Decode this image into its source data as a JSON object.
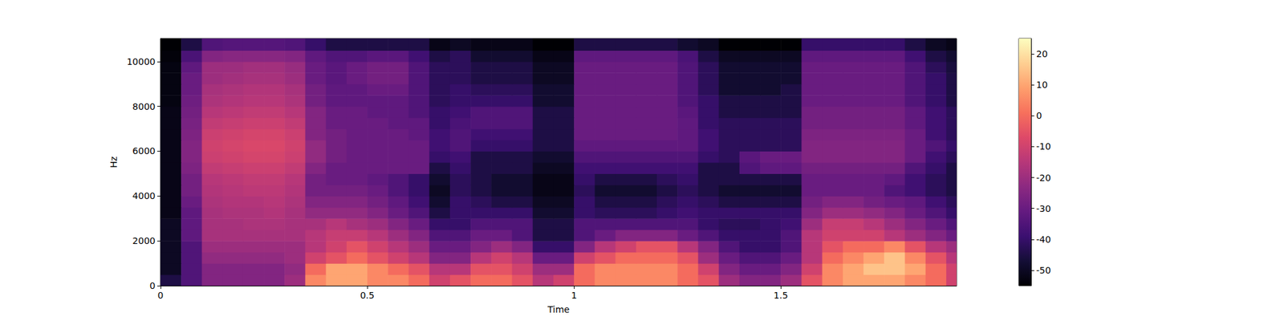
{
  "chart_data": {
    "type": "heatmap",
    "xlabel": "Time",
    "ylabel": "Hz",
    "xlim": [
      0,
      1.925
    ],
    "xticks": [
      0,
      0.5,
      1,
      1.5
    ],
    "ylim": [
      0,
      11025
    ],
    "yticks": [
      0,
      2000,
      4000,
      6000,
      8000,
      10000
    ],
    "color": "magma",
    "colorbar": {
      "range": [
        -55,
        25
      ],
      "ticks": [
        -50,
        -40,
        -30,
        -20,
        -10,
        0,
        10,
        20
      ]
    },
    "time_edges": [
      0,
      0.05,
      0.1,
      0.15,
      0.2,
      0.25,
      0.3,
      0.35,
      0.4,
      0.45,
      0.5,
      0.55,
      0.6,
      0.65,
      0.7,
      0.75,
      0.8,
      0.85,
      0.9,
      0.95,
      1,
      1.05,
      1.1,
      1.15,
      1.2,
      1.25,
      1.3,
      1.35,
      1.4,
      1.45,
      1.5,
      1.55,
      1.6,
      1.65,
      1.7,
      1.75,
      1.8,
      1.85,
      1.9,
      1.925
    ],
    "freq_edges": [
      0,
      500,
      1000,
      1500,
      2000,
      2500,
      3000,
      3500,
      4000,
      4500,
      5000,
      5500,
      6000,
      6500,
      7000,
      7500,
      8000,
      8500,
      9000,
      9500,
      10000,
      10500,
      11025
    ],
    "cells": [
      [
        -45,
        -35,
        -25,
        -25,
        -25,
        -25,
        -20,
        5,
        10,
        10,
        5,
        5,
        0,
        -10,
        -5,
        0,
        0,
        -5,
        -15,
        -10,
        0,
        5,
        5,
        5,
        5,
        0,
        -5,
        -20,
        -25,
        -25,
        -20,
        -5,
        5,
        10,
        10,
        10,
        5,
        0,
        -10
      ],
      [
        -50,
        -35,
        -25,
        -25,
        -25,
        -25,
        -22,
        0,
        10,
        10,
        5,
        0,
        -5,
        -15,
        -15,
        -5,
        -5,
        -10,
        -20,
        -20,
        0,
        5,
        5,
        5,
        5,
        0,
        -10,
        -25,
        -30,
        -30,
        -25,
        -10,
        5,
        10,
        15,
        15,
        10,
        0,
        -10
      ],
      [
        -50,
        -35,
        -22,
        -22,
        -22,
        -22,
        -20,
        -10,
        -5,
        0,
        -5,
        -10,
        -15,
        -25,
        -25,
        -15,
        -10,
        -15,
        -30,
        -30,
        -10,
        -5,
        0,
        0,
        0,
        -5,
        -20,
        -30,
        -35,
        -35,
        -30,
        -15,
        0,
        5,
        10,
        15,
        5,
        -5,
        -15
      ],
      [
        -50,
        -35,
        -20,
        -20,
        -20,
        -20,
        -20,
        -15,
        -10,
        -5,
        -10,
        -15,
        -20,
        -30,
        -30,
        -25,
        -20,
        -25,
        -40,
        -40,
        -25,
        -15,
        -10,
        -5,
        -5,
        -15,
        -25,
        -35,
        -40,
        -40,
        -35,
        -15,
        -5,
        0,
        0,
        5,
        -5,
        -15,
        -20
      ],
      [
        -50,
        -32,
        -18,
        -18,
        -18,
        -18,
        -18,
        -15,
        -12,
        -12,
        -15,
        -20,
        -25,
        -35,
        -35,
        -30,
        -30,
        -35,
        -45,
        -45,
        -35,
        -30,
        -25,
        -25,
        -25,
        -30,
        -35,
        -40,
        -40,
        -40,
        -35,
        -15,
        -10,
        -10,
        -10,
        -15,
        -20,
        -25,
        -30
      ],
      [
        -50,
        -32,
        -18,
        -18,
        -17,
        -17,
        -18,
        -18,
        -15,
        -18,
        -20,
        -25,
        -30,
        -40,
        -40,
        -35,
        -35,
        -35,
        -45,
        -45,
        -35,
        -35,
        -35,
        -35,
        -35,
        -35,
        -40,
        -42,
        -42,
        -40,
        -38,
        -20,
        -12,
        -12,
        -15,
        -20,
        -25,
        -30,
        -35
      ],
      [
        -52,
        -32,
        -18,
        -17,
        -17,
        -16,
        -18,
        -22,
        -22,
        -22,
        -25,
        -30,
        -35,
        -45,
        -40,
        -40,
        -40,
        -40,
        -48,
        -48,
        -40,
        -42,
        -42,
        -42,
        -40,
        -38,
        -40,
        -40,
        -40,
        -40,
        -40,
        -25,
        -20,
        -20,
        -22,
        -25,
        -30,
        -35,
        -40
      ],
      [
        -52,
        -30,
        -17,
        -16,
        -16,
        -15,
        -17,
        -25,
        -25,
        -25,
        -28,
        -32,
        -38,
        -48,
        -40,
        -42,
        -45,
        -45,
        -50,
        -50,
        -40,
        -45,
        -45,
        -45,
        -42,
        -40,
        -42,
        -45,
        -45,
        -45,
        -45,
        -28,
        -25,
        -25,
        -28,
        -30,
        -32,
        -38,
        -42
      ],
      [
        -52,
        -28,
        -16,
        -15,
        -14,
        -14,
        -16,
        -28,
        -28,
        -28,
        -30,
        -35,
        -40,
        -50,
        -42,
        -45,
        -48,
        -48,
        -52,
        -52,
        -42,
        -48,
        -48,
        -48,
        -45,
        -42,
        -45,
        -48,
        -48,
        -48,
        -48,
        -30,
        -30,
        -30,
        -30,
        -35,
        -38,
        -42,
        -45
      ],
      [
        -52,
        -28,
        -15,
        -14,
        -13,
        -13,
        -15,
        -28,
        -30,
        -30,
        -32,
        -35,
        -40,
        -48,
        -42,
        -45,
        -48,
        -48,
        -52,
        -52,
        -40,
        -45,
        -45,
        -45,
        -42,
        -40,
        -45,
        -45,
        -45,
        -45,
        -45,
        -30,
        -30,
        -30,
        -30,
        -32,
        -38,
        -42,
        -45
      ],
      [
        -52,
        -26,
        -13,
        -12,
        -11,
        -11,
        -13,
        -25,
        -30,
        -30,
        -30,
        -30,
        -30,
        -45,
        -40,
        -45,
        -45,
        -45,
        -50,
        -50,
        -38,
        -38,
        -38,
        -38,
        -38,
        -38,
        -45,
        -45,
        -35,
        -32,
        -32,
        -28,
        -28,
        -28,
        -28,
        -28,
        -35,
        -40,
        -45
      ],
      [
        -52,
        -25,
        -11,
        -10,
        -9,
        -9,
        -11,
        -22,
        -28,
        -30,
        -30,
        -30,
        -30,
        -40,
        -38,
        -45,
        -45,
        -45,
        -48,
        -48,
        -35,
        -35,
        -35,
        -35,
        -35,
        -35,
        -40,
        -42,
        -33,
        -30,
        -30,
        -25,
        -25,
        -25,
        -25,
        -25,
        -30,
        -38,
        -42
      ],
      [
        -52,
        -25,
        -10,
        -9,
        -8,
        -8,
        -10,
        -22,
        -28,
        -30,
        -30,
        -30,
        -30,
        -38,
        -35,
        -40,
        -40,
        -40,
        -45,
        -45,
        -32,
        -32,
        -32,
        -32,
        -32,
        -32,
        -38,
        -42,
        -42,
        -42,
        -42,
        -25,
        -25,
        -25,
        -25,
        -25,
        -30,
        -35,
        -40
      ],
      [
        -52,
        -26,
        -11,
        -10,
        -9,
        -9,
        -11,
        -25,
        -28,
        -30,
        -30,
        -30,
        -32,
        -38,
        -35,
        -38,
        -38,
        -38,
        -45,
        -45,
        -30,
        -30,
        -30,
        -30,
        -30,
        -32,
        -38,
        -42,
        -42,
        -42,
        -42,
        -26,
        -26,
        -26,
        -26,
        -26,
        -30,
        -38,
        -42
      ],
      [
        -52,
        -27,
        -13,
        -12,
        -11,
        -11,
        -13,
        -25,
        -30,
        -30,
        -30,
        -32,
        -32,
        -40,
        -36,
        -35,
        -35,
        -35,
        -45,
        -45,
        -30,
        -30,
        -30,
        -30,
        -30,
        -32,
        -40,
        -42,
        -42,
        -42,
        -42,
        -28,
        -28,
        -28,
        -28,
        -28,
        -32,
        -38,
        -42
      ],
      [
        -52,
        -28,
        -15,
        -14,
        -13,
        -13,
        -15,
        -25,
        -30,
        -30,
        -32,
        -32,
        -35,
        -40,
        -38,
        -35,
        -35,
        -35,
        -45,
        -45,
        -30,
        -30,
        -30,
        -30,
        -30,
        -33,
        -40,
        -45,
        -45,
        -45,
        -45,
        -28,
        -28,
        -28,
        -28,
        -28,
        -32,
        -38,
        -42
      ],
      [
        -53,
        -29,
        -17,
        -16,
        -15,
        -15,
        -17,
        -28,
        -32,
        -32,
        -32,
        -32,
        -35,
        -42,
        -40,
        -40,
        -40,
        -40,
        -48,
        -48,
        -30,
        -30,
        -30,
        -30,
        -30,
        -35,
        -40,
        -45,
        -45,
        -45,
        -45,
        -30,
        -30,
        -30,
        -30,
        -30,
        -35,
        -40,
        -45
      ],
      [
        -53,
        -30,
        -18,
        -17,
        -16,
        -16,
        -18,
        -28,
        -32,
        -32,
        -30,
        -30,
        -35,
        -42,
        -40,
        -42,
        -42,
        -42,
        -48,
        -48,
        -30,
        -30,
        -30,
        -30,
        -30,
        -35,
        -42,
        -48,
        -48,
        -48,
        -45,
        -30,
        -30,
        -30,
        -30,
        -30,
        -35,
        -40,
        -45
      ],
      [
        -53,
        -30,
        -20,
        -19,
        -18,
        -18,
        -20,
        -30,
        -33,
        -30,
        -28,
        -28,
        -35,
        -42,
        -42,
        -45,
        -45,
        -45,
        -50,
        -50,
        -30,
        -30,
        -30,
        -30,
        -30,
        -35,
        -42,
        -48,
        -48,
        -48,
        -48,
        -30,
        -30,
        -30,
        -30,
        -30,
        -35,
        -40,
        -45
      ],
      [
        -53,
        -32,
        -20,
        -20,
        -19,
        -19,
        -21,
        -30,
        -33,
        -30,
        -28,
        -28,
        -35,
        -42,
        -42,
        -45,
        -45,
        -45,
        -50,
        -50,
        -30,
        -30,
        -30,
        -30,
        -30,
        -35,
        -42,
        -48,
        -48,
        -48,
        -48,
        -30,
        -30,
        -30,
        -30,
        -30,
        -35,
        -42,
        -46
      ],
      [
        -54,
        -36,
        -25,
        -24,
        -24,
        -24,
        -25,
        -32,
        -35,
        -35,
        -33,
        -33,
        -38,
        -45,
        -42,
        -48,
        -48,
        -48,
        -52,
        -52,
        -32,
        -32,
        -32,
        -32,
        -32,
        -36,
        -45,
        -50,
        -50,
        -50,
        -50,
        -32,
        -32,
        -32,
        -32,
        -32,
        -38,
        -45,
        -48
      ],
      [
        -55,
        -45,
        -35,
        -34,
        -34,
        -34,
        -35,
        -40,
        -45,
        -45,
        -45,
        -45,
        -45,
        -52,
        -50,
        -52,
        -52,
        -52,
        -55,
        -55,
        -45,
        -45,
        -45,
        -45,
        -45,
        -48,
        -50,
        -55,
        -55,
        -55,
        -55,
        -40,
        -40,
        -40,
        -40,
        -40,
        -45,
        -50,
        -52
      ]
    ]
  }
}
